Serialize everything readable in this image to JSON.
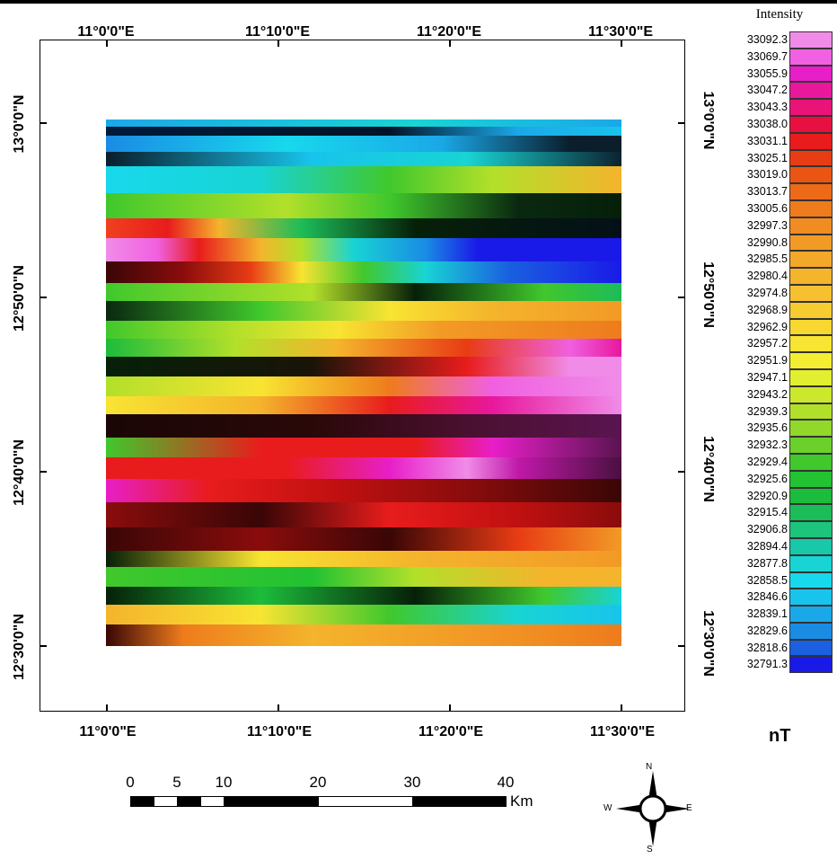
{
  "map": {
    "x_labels_top": [
      "11°0'0\"E",
      "11°10'0\"E",
      "11°20'0\"E",
      "11°30'0\"E"
    ],
    "x_labels_bottom": [
      "11°0'0\"E",
      "11°10'0\"E",
      "11°20'0\"E",
      "11°30'0\"E"
    ],
    "y_labels_left": [
      "13°0'0\"N",
      "12°50'0\"N",
      "12°40'0\"N",
      "12°30'0\"N"
    ],
    "y_labels_right": [
      "13°0'0\"N",
      "12°50'0\"N",
      "12°40'0\"N",
      "12°30'0\"N"
    ],
    "colors": {
      "background": "#ffffff",
      "frame": "#000000"
    }
  },
  "legend": {
    "title": "Intensity",
    "unit": "nT",
    "values": [
      "33092.3",
      "33069.7",
      "33055.9",
      "33047.2",
      "33043.3",
      "33038.0",
      "33031.1",
      "33025.1",
      "33019.0",
      "33013.7",
      "33005.6",
      "32997.3",
      "32990.8",
      "32985.5",
      "32980.4",
      "32974.8",
      "32968.9",
      "32962.9",
      "32957.2",
      "32951.9",
      "32947.1",
      "32943.2",
      "32939.3",
      "32935.6",
      "32932.3",
      "32929.4",
      "32925.6",
      "32920.9",
      "32915.4",
      "32906.8",
      "32894.4",
      "32877.8",
      "32858.5",
      "32846.6",
      "32839.1",
      "32829.6",
      "32818.6",
      "32791.3"
    ],
    "colors": [
      "#f08ce8",
      "#f060e0",
      "#e81ec8",
      "#e8189c",
      "#e81478",
      "#e81040",
      "#e81c1c",
      "#e83c14",
      "#ea5514",
      "#ec6a18",
      "#ee7c1c",
      "#f08c22",
      "#f29a26",
      "#f4a82a",
      "#f4b42c",
      "#f6c030",
      "#f6cc30",
      "#f8d830",
      "#f8e432",
      "#f4ee32",
      "#e2ee30",
      "#cce82c",
      "#b2e02a",
      "#92d82a",
      "#6cd02a",
      "#40c82c",
      "#22c232",
      "#1cbc3c",
      "#1cbc58",
      "#1cc47c",
      "#18c8a8",
      "#18d4d4",
      "#18d8ec",
      "#18c4ec",
      "#1aa8e8",
      "#1a8ce4",
      "#1a60e0",
      "#1a1ae8"
    ]
  },
  "scale_bar": {
    "ticks": [
      "0",
      "5",
      "10",
      "20",
      "30",
      "40"
    ],
    "unit": "Km"
  },
  "north_arrow": {
    "n": "N",
    "s": "S",
    "e": "E",
    "w": "W",
    "icon": "compass-rose-icon"
  }
}
